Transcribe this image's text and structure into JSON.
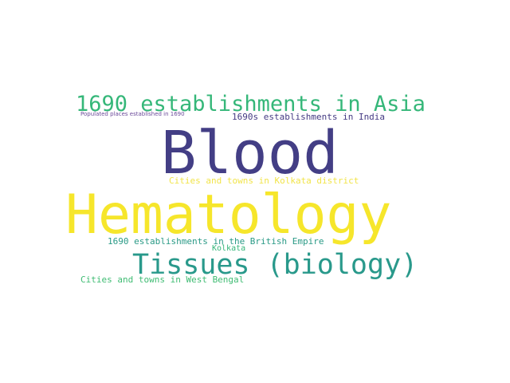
{
  "words": {
    "hematology": "Hematology",
    "blood": "Blood",
    "asia": "1690 establishments in Asia",
    "tissues": "Tissues (biology)",
    "india": "1690s establishments in India",
    "populated": "Populated places established in 1690",
    "kolkata_district": "Cities and towns in Kolkata district",
    "british": "1690 establishments in the British Empire",
    "kolkata": "Kolkata",
    "west_bengal": "Cities and towns in West Bengal"
  },
  "colors": {
    "hematology": "#f6e62b",
    "blood": "#433e85",
    "asia": "#35b779",
    "tissues": "#29998b",
    "india": "#443a83",
    "populated": "#6b4a9a",
    "kolkata_district": "#f1e44a",
    "british": "#2a9a86",
    "kolkata": "#34b679",
    "west_bengal": "#3fbc73"
  }
}
